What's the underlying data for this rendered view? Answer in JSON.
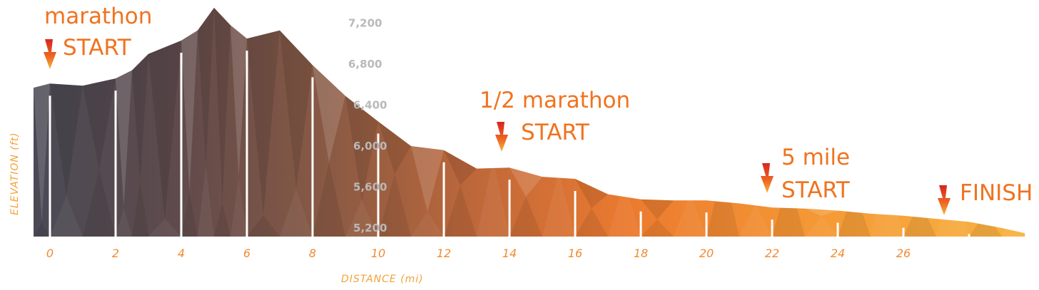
{
  "chart_data": {
    "type": "area",
    "title": "",
    "xlabel": "DISTANCE (mi)",
    "ylabel": "ELEVATION (ft)",
    "xlim": [
      -0.5,
      30
    ],
    "ylim": [
      5150,
      7400
    ],
    "x_ticks": [
      0,
      2,
      4,
      6,
      8,
      10,
      12,
      14,
      16,
      18,
      20,
      22,
      24,
      26
    ],
    "y_ticks": [
      5200,
      5600,
      6000,
      6400,
      6800,
      7200
    ],
    "x_tick_labels": [
      "0",
      "2",
      "4",
      "6",
      "8",
      "10",
      "12",
      "14",
      "16",
      "18",
      "20",
      "22",
      "24",
      "26"
    ],
    "y_tick_labels": [
      "5,200",
      "5,600",
      "6,000",
      "6,400",
      "6,800",
      "7,200"
    ],
    "series": [
      {
        "x": [
          -0.5,
          0,
          1,
          2,
          2.5,
          3,
          4,
          4.5,
          5,
          5.5,
          6,
          7,
          8,
          9,
          10,
          11,
          12,
          13,
          14,
          15,
          16,
          17,
          18,
          19,
          20,
          21,
          22,
          23,
          24,
          25,
          26,
          27,
          28,
          29,
          29.7
        ],
        "y": [
          6570,
          6610,
          6590,
          6660,
          6740,
          6900,
          7030,
          7130,
          7350,
          7180,
          7050,
          7130,
          6790,
          6490,
          6240,
          6000,
          5960,
          5780,
          5790,
          5700,
          5680,
          5530,
          5480,
          5470,
          5470,
          5440,
          5400,
          5390,
          5370,
          5340,
          5320,
          5290,
          5260,
          5200,
          5150
        ]
      }
    ],
    "annotations": [
      {
        "lines": [
          "marathon",
          "START"
        ],
        "x": 0
      },
      {
        "lines": [
          "1/2 marathon",
          "START"
        ],
        "x": 13.1
      },
      {
        "lines": [
          "5 mile",
          "START"
        ],
        "x": 21.2
      },
      {
        "lines": [
          "FINISH"
        ],
        "x": 27.0
      }
    ]
  }
}
